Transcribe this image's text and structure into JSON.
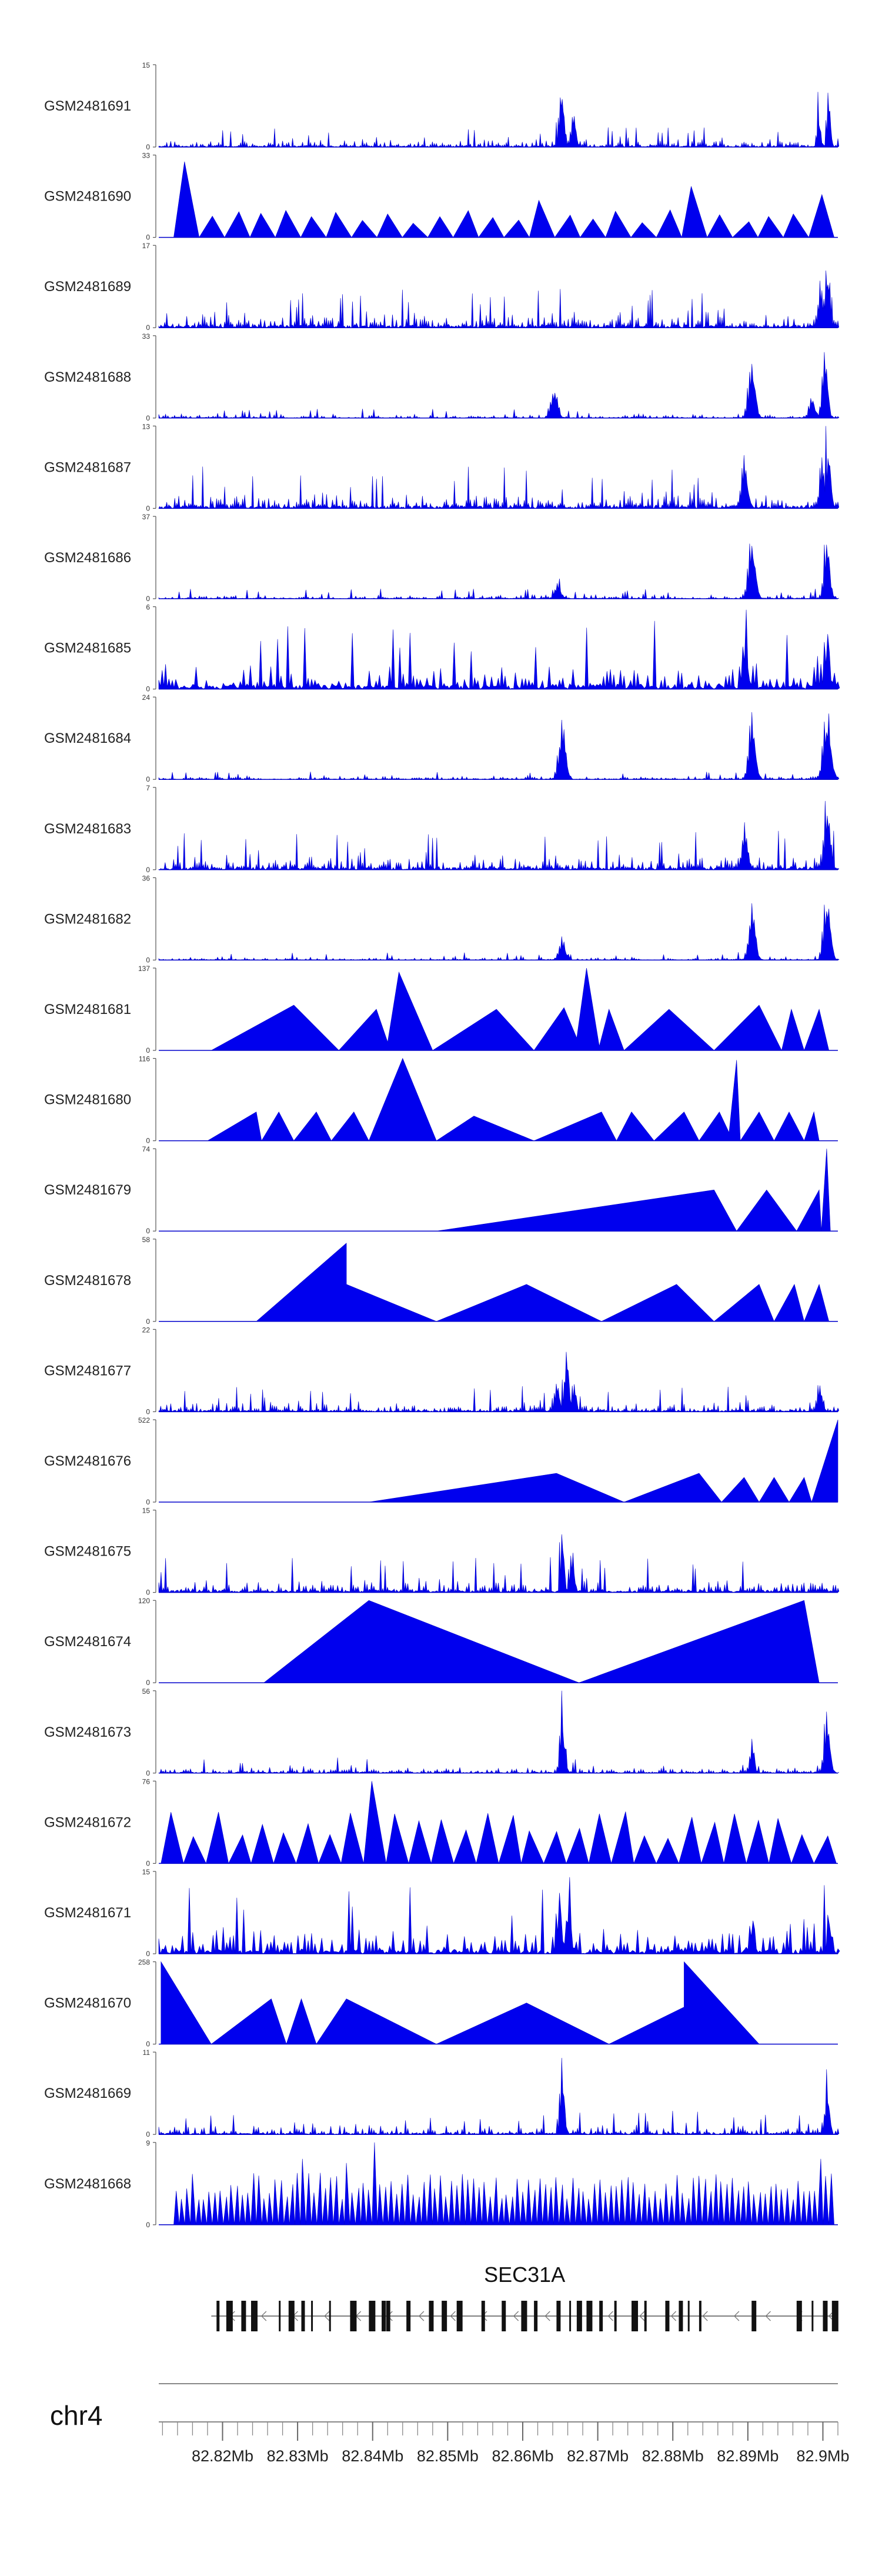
{
  "chart_data": {
    "type": "area",
    "title": "",
    "chromosome": "chr4",
    "xlim": [
      82.8115,
      82.902
    ],
    "x_unit": "Mb",
    "x_ticks": [
      {
        "pos": 82.82,
        "label": "82.82Mb"
      },
      {
        "pos": 82.83,
        "label": "82.83Mb"
      },
      {
        "pos": 82.84,
        "label": "82.84Mb"
      },
      {
        "pos": 82.85,
        "label": "82.85Mb"
      },
      {
        "pos": 82.86,
        "label": "82.86Mb"
      },
      {
        "pos": 82.87,
        "label": "82.87Mb"
      },
      {
        "pos": 82.88,
        "label": "82.88Mb"
      },
      {
        "pos": 82.89,
        "label": "82.89Mb"
      },
      {
        "pos": 82.9,
        "label": "82.9Mb"
      }
    ],
    "minor_tick_step": 0.002,
    "tracks": [
      {
        "name": "GSM2481691",
        "ymax": "15",
        "ymin": "0",
        "kind": "noisy",
        "density": 340,
        "base": 0.1,
        "seed": 11,
        "peaks": [
          [
            82.8651,
            1.0,
            0.0004
          ],
          [
            82.8667,
            0.55,
            0.0004
          ],
          [
            82.8994,
            0.55,
            0.0003
          ],
          [
            82.9007,
            0.85,
            0.0003
          ]
        ]
      },
      {
        "name": "GSM2481690",
        "ymax": "33",
        "ymin": "0",
        "kind": "sparse",
        "count": 26,
        "base": 0.3,
        "seed": 23,
        "start": 82.8135,
        "end": 82.9015,
        "spikes": [
          [
            82.816,
            0.92
          ],
          [
            82.8635,
            0.45
          ],
          [
            82.8815,
            0.62
          ],
          [
            82.8992,
            0.52
          ]
        ]
      },
      {
        "name": "GSM2481689",
        "ymax": "17",
        "ymin": "0",
        "kind": "noisy",
        "density": 340,
        "base": 0.2,
        "seed": 37,
        "peaks": [
          [
            82.8996,
            0.58,
            0.0004
          ],
          [
            82.9005,
            1.0,
            0.0004
          ]
        ]
      },
      {
        "name": "GSM2481688",
        "ymax": "33",
        "ymin": "0",
        "kind": "noisy",
        "density": 300,
        "base": 0.05,
        "seed": 41,
        "peaks": [
          [
            82.8641,
            0.45,
            0.0006
          ],
          [
            82.8905,
            0.9,
            0.0006
          ],
          [
            82.9002,
            1.0,
            0.0005
          ],
          [
            82.8985,
            0.35,
            0.0005
          ]
        ]
      },
      {
        "name": "GSM2481687",
        "ymax": "13",
        "ymin": "0",
        "kind": "noisy",
        "density": 340,
        "base": 0.22,
        "seed": 53,
        "peaks": [
          [
            82.8895,
            0.75,
            0.0005
          ],
          [
            82.8998,
            0.7,
            0.0004
          ],
          [
            82.9007,
            1.0,
            0.0004
          ]
        ]
      },
      {
        "name": "GSM2481686",
        "ymax": "37",
        "ymin": "0",
        "kind": "noisy",
        "density": 300,
        "base": 0.05,
        "seed": 67,
        "peaks": [
          [
            82.8646,
            0.22,
            0.0006
          ],
          [
            82.8905,
            1.0,
            0.0006
          ],
          [
            82.9005,
            0.95,
            0.0005
          ]
        ]
      },
      {
        "name": "GSM2481685",
        "ymax": "6",
        "ymin": "0",
        "kind": "noisy",
        "density": 200,
        "base": 0.35,
        "seed": 71,
        "peaks": [
          [
            82.8895,
            0.65,
            0.0005
          ],
          [
            82.9005,
            1.0,
            0.0004
          ]
        ]
      },
      {
        "name": "GSM2481684",
        "ymax": "24",
        "ymin": "0",
        "kind": "noisy",
        "density": 300,
        "base": 0.04,
        "seed": 83,
        "peaks": [
          [
            82.8652,
            0.85,
            0.0006
          ],
          [
            82.8905,
            0.95,
            0.0006
          ],
          [
            82.9005,
            1.0,
            0.0007
          ]
        ]
      },
      {
        "name": "GSM2481683",
        "ymax": "7",
        "ymin": "0",
        "kind": "noisy",
        "density": 320,
        "base": 0.2,
        "seed": 97,
        "peaks": [
          [
            82.8895,
            0.6,
            0.0005
          ],
          [
            82.9005,
            1.0,
            0.0005
          ]
        ]
      },
      {
        "name": "GSM2481682",
        "ymax": "36",
        "ymin": "0",
        "kind": "noisy",
        "density": 300,
        "base": 0.04,
        "seed": 101,
        "peaks": [
          [
            82.8652,
            0.3,
            0.0006
          ],
          [
            82.8905,
            0.82,
            0.0006
          ],
          [
            82.9005,
            1.0,
            0.0006
          ]
        ]
      },
      {
        "name": "GSM2481681",
        "ymax": "137",
        "ymin": "0",
        "kind": "poly",
        "points": [
          [
            82.8185,
            0
          ],
          [
            82.8295,
            0.55
          ],
          [
            82.8355,
            0
          ],
          [
            82.8405,
            0.5
          ],
          [
            82.842,
            0.1
          ],
          [
            82.8435,
            0.95
          ],
          [
            82.848,
            0
          ],
          [
            82.8565,
            0.5
          ],
          [
            82.8615,
            0
          ],
          [
            82.8655,
            0.52
          ],
          [
            82.8672,
            0.15
          ],
          [
            82.8685,
            1.0
          ],
          [
            82.8702,
            0.05
          ],
          [
            82.8715,
            0.5
          ],
          [
            82.8735,
            0
          ],
          [
            82.8795,
            0.5
          ],
          [
            82.8855,
            0
          ],
          [
            82.8915,
            0.55
          ],
          [
            82.8945,
            0
          ],
          [
            82.8958,
            0.5
          ],
          [
            82.8975,
            0
          ],
          [
            82.8995,
            0.5
          ],
          [
            82.9008,
            0
          ]
        ]
      },
      {
        "name": "GSM2481680",
        "ymax": "116",
        "ymin": "0",
        "kind": "poly",
        "points": [
          [
            82.818,
            0
          ],
          [
            82.8245,
            0.35
          ],
          [
            82.8252,
            0
          ],
          [
            82.8275,
            0.35
          ],
          [
            82.8295,
            0
          ],
          [
            82.8325,
            0.35
          ],
          [
            82.8345,
            0
          ],
          [
            82.8375,
            0.35
          ],
          [
            82.8395,
            0
          ],
          [
            82.844,
            1.0
          ],
          [
            82.8485,
            0
          ],
          [
            82.8535,
            0.3
          ],
          [
            82.8615,
            0
          ],
          [
            82.8705,
            0.35
          ],
          [
            82.8725,
            0
          ],
          [
            82.8745,
            0.35
          ],
          [
            82.8775,
            0
          ],
          [
            82.8815,
            0.35
          ],
          [
            82.8835,
            0
          ],
          [
            82.8862,
            0.35
          ],
          [
            82.8875,
            0.1
          ],
          [
            82.8885,
            0.98
          ],
          [
            82.889,
            0
          ],
          [
            82.8915,
            0.35
          ],
          [
            82.8935,
            0
          ],
          [
            82.8955,
            0.35
          ],
          [
            82.8975,
            0
          ],
          [
            82.8988,
            0.35
          ],
          [
            82.8995,
            0
          ]
        ]
      },
      {
        "name": "GSM2481679",
        "ymax": "74",
        "ymin": "0",
        "kind": "poly",
        "points": [
          [
            82.8485,
            0
          ],
          [
            82.8855,
            0.5
          ],
          [
            82.8885,
            0
          ],
          [
            82.8925,
            0.5
          ],
          [
            82.8965,
            0
          ],
          [
            82.8995,
            0.5
          ],
          [
            82.8998,
            0
          ],
          [
            82.9005,
            1.0
          ],
          [
            82.901,
            0
          ]
        ]
      },
      {
        "name": "GSM2481678",
        "ymax": "58",
        "ymin": "0",
        "kind": "poly",
        "points": [
          [
            82.8245,
            0
          ],
          [
            82.8365,
            0.95
          ],
          [
            82.8365,
            0.45
          ],
          [
            82.8485,
            0
          ],
          [
            82.8605,
            0.45
          ],
          [
            82.8705,
            0
          ],
          [
            82.8805,
            0.45
          ],
          [
            82.8855,
            0
          ],
          [
            82.8915,
            0.45
          ],
          [
            82.8935,
            0
          ],
          [
            82.8962,
            0.45
          ],
          [
            82.8975,
            0
          ],
          [
            82.8995,
            0.45
          ],
          [
            82.9008,
            0
          ]
        ]
      },
      {
        "name": "GSM2481677",
        "ymax": "22",
        "ymin": "0",
        "kind": "noisy",
        "density": 340,
        "base": 0.13,
        "seed": 131,
        "peaks": [
          [
            82.8658,
            1.0,
            0.0004
          ],
          [
            82.8645,
            0.45,
            0.0004
          ],
          [
            82.8668,
            0.4,
            0.0004
          ],
          [
            82.8995,
            0.4,
            0.0004
          ]
        ]
      },
      {
        "name": "GSM2481676",
        "ymax": "522",
        "ymin": "0",
        "kind": "poly",
        "points": [
          [
            82.8395,
            0
          ],
          [
            82.8645,
            0.35
          ],
          [
            82.8735,
            0
          ],
          [
            82.8835,
            0.35
          ],
          [
            82.8865,
            0
          ],
          [
            82.8895,
            0.3
          ],
          [
            82.8915,
            0
          ],
          [
            82.8935,
            0.3
          ],
          [
            82.8955,
            0
          ],
          [
            82.8975,
            0.3
          ],
          [
            82.8985,
            0
          ],
          [
            82.902,
            1.0
          ]
        ]
      },
      {
        "name": "GSM2481675",
        "ymax": "15",
        "ymin": "0",
        "kind": "noisy",
        "density": 300,
        "base": 0.18,
        "seed": 149,
        "peaks": [
          [
            82.8652,
            1.0,
            0.0003
          ],
          [
            82.8665,
            0.55,
            0.0004
          ]
        ]
      },
      {
        "name": "GSM2481674",
        "ymax": "120",
        "ymin": "0",
        "kind": "poly",
        "points": [
          [
            82.8255,
            0
          ],
          [
            82.8395,
            1.0
          ],
          [
            82.8675,
            0
          ],
          [
            82.8975,
            1.0
          ],
          [
            82.8995,
            0
          ]
        ]
      },
      {
        "name": "GSM2481673",
        "ymax": "56",
        "ymin": "0",
        "kind": "noisy",
        "density": 300,
        "base": 0.08,
        "seed": 163,
        "peaks": [
          [
            82.8652,
            1.0,
            0.0004
          ],
          [
            82.8905,
            0.45,
            0.0004
          ],
          [
            82.9005,
            0.85,
            0.0005
          ]
        ]
      },
      {
        "name": "GSM2481672",
        "ymax": "76",
        "ymin": "0",
        "kind": "sparse",
        "count": 30,
        "base": 0.55,
        "seed": 173,
        "start": 82.8118,
        "end": 82.9018,
        "spikes": [
          [
            82.8395,
            1.0
          ],
          [
            82.8865,
            0.5
          ]
        ]
      },
      {
        "name": "GSM2481671",
        "ymax": "15",
        "ymin": "0",
        "kind": "noisy",
        "density": 200,
        "base": 0.35,
        "seed": 181,
        "peaks": [
          [
            82.8648,
            0.95,
            0.0004
          ],
          [
            82.866,
            0.85,
            0.0004
          ],
          [
            82.8905,
            0.8,
            0.0003
          ],
          [
            82.9008,
            0.8,
            0.0003
          ]
        ]
      },
      {
        "name": "GSM2481670",
        "ymax": "258",
        "ymin": "0",
        "kind": "poly",
        "points": [
          [
            82.8118,
            1.0
          ],
          [
            82.8185,
            0
          ],
          [
            82.8265,
            0.55
          ],
          [
            82.8285,
            0
          ],
          [
            82.8305,
            0.55
          ],
          [
            82.8325,
            0
          ],
          [
            82.8365,
            0.55
          ],
          [
            82.8485,
            0
          ],
          [
            82.8605,
            0.5
          ],
          [
            82.8715,
            0
          ],
          [
            82.8815,
            0.45
          ],
          [
            82.8815,
            1.0
          ],
          [
            82.8915,
            0
          ]
        ]
      },
      {
        "name": "GSM2481669",
        "ymax": "11",
        "ymin": "0",
        "kind": "noisy",
        "density": 300,
        "base": 0.12,
        "seed": 193,
        "peaks": [
          [
            82.8652,
            1.0,
            0.0004
          ],
          [
            82.9005,
            0.75,
            0.0004
          ]
        ]
      },
      {
        "name": "GSM2481668",
        "ymax": "9",
        "ymin": "0",
        "kind": "sparse",
        "count": 120,
        "base": 0.55,
        "seed": 199,
        "start": 82.8135,
        "end": 82.9015,
        "spikes": [
          [
            82.8405,
            1.0
          ],
          [
            82.8365,
            0.75
          ],
          [
            82.8305,
            0.8
          ],
          [
            82.8995,
            0.8
          ]
        ]
      }
    ],
    "gene": {
      "name": "SEC31A",
      "start": 82.8185,
      "end": 82.902,
      "exons": [
        82.8192,
        82.8205,
        82.8225,
        82.8238,
        82.8275,
        82.8288,
        82.8305,
        82.8318,
        82.8342,
        82.837,
        82.8395,
        82.8412,
        82.8418,
        82.8445,
        82.8475,
        82.8492,
        82.8512,
        82.8545,
        82.8572,
        82.8598,
        82.8615,
        82.8645,
        82.8662,
        82.8672,
        82.8685,
        82.8702,
        82.8722,
        82.8745,
        82.8762,
        82.879,
        82.8808,
        82.882,
        82.8835,
        82.8905,
        82.8965,
        82.8985,
        82.9,
        82.9012
      ]
    }
  }
}
